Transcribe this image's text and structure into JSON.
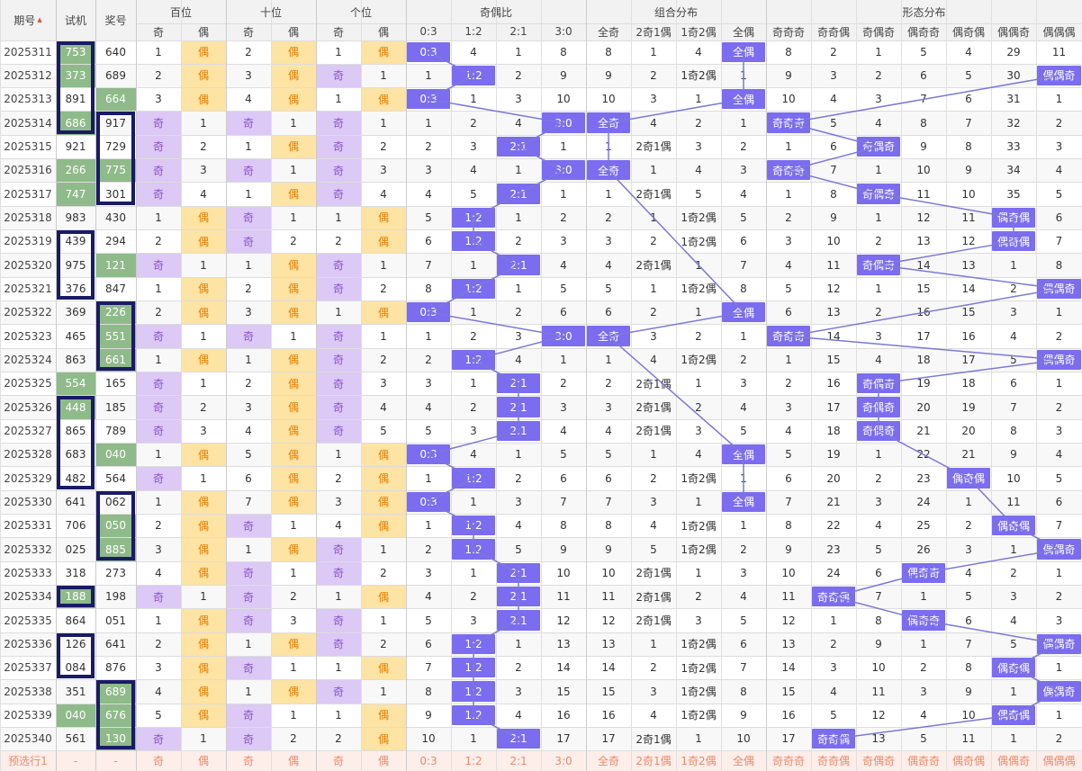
{
  "colors": {
    "mark": "#7b6cf0",
    "green": "#8fba8a",
    "odd_bg": "#dcc9f5",
    "even_bg": "#fde3a4",
    "line": "#7d78d8"
  },
  "header": {
    "period": "期号",
    "test": "试机",
    "prize": "奖号",
    "groups": [
      "百位",
      "十位",
      "个位",
      "奇偶比",
      "组合分布",
      "形态分布"
    ],
    "sub": [
      "奇",
      "偶",
      "奇",
      "偶",
      "奇",
      "偶",
      "0:3",
      "1:2",
      "2:1",
      "3:0",
      "全奇",
      "2奇1偶",
      "1奇2偶",
      "全偶",
      "奇奇奇",
      "奇奇偶",
      "奇偶奇",
      "偶奇奇",
      "偶奇偶",
      "偶偶奇",
      "偶偶偶"
    ]
  },
  "rows": [
    {
      "p": "2025311",
      "t": "753",
      "w": "640",
      "tg": 1,
      "wg": 0,
      "v": [
        "1",
        "偶",
        "2",
        "偶",
        "1",
        "偶",
        "0:3",
        "4",
        "1",
        "8",
        "8",
        "1",
        "4",
        "全偶",
        "8",
        "2",
        "1",
        "5",
        "4",
        "29",
        "11"
      ]
    },
    {
      "p": "2025312",
      "t": "373",
      "w": "689",
      "tg": 1,
      "wg": 0,
      "v": [
        "2",
        "偶",
        "3",
        "偶",
        "奇",
        "1",
        "1",
        "1:2",
        "2",
        "9",
        "9",
        "2",
        "1奇2偶",
        "1",
        "9",
        "3",
        "2",
        "6",
        "5",
        "30",
        "偶偶奇"
      ]
    },
    {
      "p": "2025313",
      "t": "891",
      "w": "664",
      "tg": 0,
      "wg": 1,
      "v": [
        "3",
        "偶",
        "4",
        "偶",
        "1",
        "偶",
        "0:3",
        "1",
        "3",
        "10",
        "10",
        "3",
        "1",
        "全偶",
        "10",
        "4",
        "3",
        "7",
        "6",
        "31",
        "1"
      ]
    },
    {
      "p": "2025314",
      "t": "686",
      "w": "917",
      "tg": 1,
      "wg": 0,
      "v": [
        "奇",
        "1",
        "奇",
        "1",
        "奇",
        "1",
        "1",
        "2",
        "4",
        "3:0",
        "全奇",
        "4",
        "2",
        "1",
        "奇奇奇",
        "5",
        "4",
        "8",
        "7",
        "32",
        "2"
      ]
    },
    {
      "p": "2025315",
      "t": "921",
      "w": "729",
      "tg": 0,
      "wg": 0,
      "v": [
        "奇",
        "2",
        "1",
        "偶",
        "奇",
        "2",
        "2",
        "3",
        "2:1",
        "1",
        "1",
        "2奇1偶",
        "3",
        "2",
        "1",
        "6",
        "奇偶奇",
        "9",
        "8",
        "33",
        "3"
      ]
    },
    {
      "p": "2025316",
      "t": "266",
      "w": "775",
      "tg": 1,
      "wg": 1,
      "v": [
        "奇",
        "3",
        "奇",
        "1",
        "奇",
        "3",
        "3",
        "4",
        "1",
        "3:0",
        "全奇",
        "1",
        "4",
        "3",
        "奇奇奇",
        "7",
        "1",
        "10",
        "9",
        "34",
        "4"
      ]
    },
    {
      "p": "2025317",
      "t": "747",
      "w": "301",
      "tg": 1,
      "wg": 0,
      "v": [
        "奇",
        "4",
        "1",
        "偶",
        "奇",
        "4",
        "4",
        "5",
        "2:1",
        "1",
        "1",
        "2奇1偶",
        "5",
        "4",
        "1",
        "8",
        "奇偶奇",
        "11",
        "10",
        "35",
        "5"
      ]
    },
    {
      "p": "2025318",
      "t": "983",
      "w": "430",
      "tg": 0,
      "wg": 0,
      "v": [
        "1",
        "偶",
        "奇",
        "1",
        "1",
        "偶",
        "5",
        "1:2",
        "1",
        "2",
        "2",
        "1",
        "1奇2偶",
        "5",
        "2",
        "9",
        "1",
        "12",
        "11",
        "偶奇偶",
        "6"
      ]
    },
    {
      "p": "2025319",
      "t": "439",
      "w": "294",
      "tg": 0,
      "wg": 0,
      "v": [
        "2",
        "偶",
        "奇",
        "2",
        "2",
        "偶",
        "6",
        "1:2",
        "2",
        "3",
        "3",
        "2",
        "1奇2偶",
        "6",
        "3",
        "10",
        "2",
        "13",
        "12",
        "偶奇偶",
        "7"
      ]
    },
    {
      "p": "2025320",
      "t": "975",
      "w": "121",
      "tg": 0,
      "wg": 1,
      "v": [
        "奇",
        "1",
        "1",
        "偶",
        "奇",
        "1",
        "7",
        "1",
        "2:1",
        "4",
        "4",
        "2奇1偶",
        "1",
        "7",
        "4",
        "11",
        "奇偶奇",
        "14",
        "13",
        "1",
        "8"
      ]
    },
    {
      "p": "2025321",
      "t": "376",
      "w": "847",
      "tg": 0,
      "wg": 0,
      "v": [
        "1",
        "偶",
        "2",
        "偶",
        "奇",
        "2",
        "8",
        "1:2",
        "1",
        "5",
        "5",
        "1",
        "1奇2偶",
        "8",
        "5",
        "12",
        "1",
        "15",
        "14",
        "2",
        "偶偶奇"
      ]
    },
    {
      "p": "2025322",
      "t": "369",
      "w": "226",
      "tg": 0,
      "wg": 1,
      "v": [
        "2",
        "偶",
        "3",
        "偶",
        "1",
        "偶",
        "0:3",
        "1",
        "2",
        "6",
        "6",
        "2",
        "1",
        "全偶",
        "6",
        "13",
        "2",
        "16",
        "15",
        "3",
        "1"
      ]
    },
    {
      "p": "2025323",
      "t": "465",
      "w": "551",
      "tg": 0,
      "wg": 1,
      "v": [
        "奇",
        "1",
        "奇",
        "1",
        "奇",
        "1",
        "1",
        "2",
        "3",
        "3:0",
        "全奇",
        "3",
        "2",
        "1",
        "奇奇奇",
        "14",
        "3",
        "17",
        "16",
        "4",
        "2"
      ]
    },
    {
      "p": "2025324",
      "t": "863",
      "w": "661",
      "tg": 0,
      "wg": 1,
      "v": [
        "1",
        "偶",
        "1",
        "偶",
        "奇",
        "2",
        "2",
        "1:2",
        "4",
        "1",
        "1",
        "4",
        "1奇2偶",
        "2",
        "1",
        "15",
        "4",
        "18",
        "17",
        "5",
        "偶偶奇"
      ]
    },
    {
      "p": "2025325",
      "t": "554",
      "w": "165",
      "tg": 1,
      "wg": 0,
      "v": [
        "奇",
        "1",
        "2",
        "偶",
        "奇",
        "3",
        "3",
        "1",
        "2:1",
        "2",
        "2",
        "2奇1偶",
        "1",
        "3",
        "2",
        "16",
        "奇偶奇",
        "19",
        "18",
        "6",
        "1"
      ]
    },
    {
      "p": "2025326",
      "t": "448",
      "w": "185",
      "tg": 1,
      "wg": 0,
      "v": [
        "奇",
        "2",
        "3",
        "偶",
        "奇",
        "4",
        "4",
        "2",
        "2:1",
        "3",
        "3",
        "2奇1偶",
        "2",
        "4",
        "3",
        "17",
        "奇偶奇",
        "20",
        "19",
        "7",
        "2"
      ]
    },
    {
      "p": "2025327",
      "t": "865",
      "w": "789",
      "tg": 0,
      "wg": 0,
      "v": [
        "奇",
        "3",
        "4",
        "偶",
        "奇",
        "5",
        "5",
        "3",
        "2:1",
        "4",
        "4",
        "2奇1偶",
        "3",
        "5",
        "4",
        "18",
        "奇偶奇",
        "21",
        "20",
        "8",
        "3"
      ]
    },
    {
      "p": "2025328",
      "t": "683",
      "w": "040",
      "tg": 0,
      "wg": 1,
      "v": [
        "1",
        "偶",
        "5",
        "偶",
        "1",
        "偶",
        "0:3",
        "4",
        "1",
        "5",
        "5",
        "1",
        "4",
        "全偶",
        "5",
        "19",
        "1",
        "22",
        "21",
        "9",
        "4"
      ]
    },
    {
      "p": "2025329",
      "t": "482",
      "w": "564",
      "tg": 0,
      "wg": 0,
      "v": [
        "奇",
        "1",
        "6",
        "偶",
        "2",
        "偶",
        "1",
        "1:2",
        "2",
        "6",
        "6",
        "2",
        "1奇2偶",
        "1",
        "6",
        "20",
        "2",
        "23",
        "偶奇偶",
        "10",
        "5"
      ]
    },
    {
      "p": "2025330",
      "t": "641",
      "w": "062",
      "tg": 0,
      "wg": 0,
      "v": [
        "1",
        "偶",
        "7",
        "偶",
        "3",
        "偶",
        "0:3",
        "1",
        "3",
        "7",
        "7",
        "3",
        "1",
        "全偶",
        "7",
        "21",
        "3",
        "24",
        "1",
        "11",
        "6"
      ]
    },
    {
      "p": "2025331",
      "t": "706",
      "w": "050",
      "tg": 0,
      "wg": 1,
      "v": [
        "2",
        "偶",
        "奇",
        "1",
        "4",
        "偶",
        "1",
        "1:2",
        "4",
        "8",
        "8",
        "4",
        "1奇2偶",
        "1",
        "8",
        "22",
        "4",
        "25",
        "2",
        "偶奇偶",
        "7"
      ]
    },
    {
      "p": "2025332",
      "t": "025",
      "w": "885",
      "tg": 0,
      "wg": 1,
      "v": [
        "3",
        "偶",
        "1",
        "偶",
        "奇",
        "1",
        "2",
        "1:2",
        "5",
        "9",
        "9",
        "5",
        "1奇2偶",
        "2",
        "9",
        "23",
        "5",
        "26",
        "3",
        "1",
        "偶偶奇"
      ]
    },
    {
      "p": "2025333",
      "t": "318",
      "w": "273",
      "tg": 0,
      "wg": 0,
      "v": [
        "4",
        "偶",
        "奇",
        "1",
        "奇",
        "2",
        "3",
        "1",
        "2:1",
        "10",
        "10",
        "2奇1偶",
        "1",
        "3",
        "10",
        "24",
        "6",
        "偶奇奇",
        "4",
        "2",
        "1"
      ]
    },
    {
      "p": "2025334",
      "t": "188",
      "w": "198",
      "tg": 1,
      "wg": 0,
      "v": [
        "奇",
        "1",
        "奇",
        "2",
        "1",
        "偶",
        "4",
        "2",
        "2:1",
        "11",
        "11",
        "2奇1偶",
        "2",
        "4",
        "11",
        "奇奇偶",
        "7",
        "1",
        "5",
        "3",
        "2"
      ]
    },
    {
      "p": "2025335",
      "t": "864",
      "w": "051",
      "tg": 0,
      "wg": 0,
      "v": [
        "1",
        "偶",
        "奇",
        "3",
        "奇",
        "1",
        "5",
        "3",
        "2:1",
        "12",
        "12",
        "2奇1偶",
        "3",
        "5",
        "12",
        "1",
        "8",
        "偶奇奇",
        "6",
        "4",
        "3"
      ]
    },
    {
      "p": "2025336",
      "t": "126",
      "w": "641",
      "tg": 0,
      "wg": 0,
      "v": [
        "2",
        "偶",
        "1",
        "偶",
        "奇",
        "2",
        "6",
        "1:2",
        "1",
        "13",
        "13",
        "1",
        "1奇2偶",
        "6",
        "13",
        "2",
        "9",
        "1",
        "7",
        "5",
        "偶偶奇"
      ]
    },
    {
      "p": "2025337",
      "t": "084",
      "w": "876",
      "tg": 0,
      "wg": 0,
      "v": [
        "3",
        "偶",
        "奇",
        "1",
        "1",
        "偶",
        "7",
        "1:2",
        "2",
        "14",
        "14",
        "2",
        "1奇2偶",
        "7",
        "14",
        "3",
        "10",
        "2",
        "8",
        "偶奇偶",
        "1"
      ]
    },
    {
      "p": "2025338",
      "t": "351",
      "w": "689",
      "tg": 0,
      "wg": 1,
      "v": [
        "4",
        "偶",
        "1",
        "偶",
        "奇",
        "1",
        "8",
        "1:2",
        "3",
        "15",
        "15",
        "3",
        "1奇2偶",
        "8",
        "15",
        "4",
        "11",
        "3",
        "9",
        "1",
        "偶偶奇"
      ]
    },
    {
      "p": "2025339",
      "t": "040",
      "w": "676",
      "tg": 1,
      "wg": 1,
      "v": [
        "5",
        "偶",
        "奇",
        "1",
        "1",
        "偶",
        "9",
        "1:2",
        "4",
        "16",
        "16",
        "4",
        "1奇2偶",
        "9",
        "16",
        "5",
        "12",
        "4",
        "10",
        "偶奇偶",
        "1"
      ]
    },
    {
      "p": "2025340",
      "t": "561",
      "w": "130",
      "tg": 0,
      "wg": 1,
      "v": [
        "奇",
        "1",
        "奇",
        "2",
        "2",
        "偶",
        "10",
        "1",
        "2:1",
        "17",
        "17",
        "2奇1偶",
        "1",
        "10",
        "17",
        "奇奇偶",
        "13",
        "5",
        "11",
        "1",
        "2"
      ]
    }
  ],
  "footer": {
    "p": "预选行1",
    "t": "-",
    "w": "-",
    "v": [
      "奇",
      "偶",
      "奇",
      "偶",
      "奇",
      "偶",
      "0:3",
      "1:2",
      "2:1",
      "3:0",
      "全奇",
      "2奇1偶",
      "1奇2偶",
      "全偶",
      "奇奇奇",
      "奇奇偶",
      "奇偶奇",
      "偶奇奇",
      "偶奇偶",
      "偶偶奇",
      "偶偶偶"
    ]
  }
}
